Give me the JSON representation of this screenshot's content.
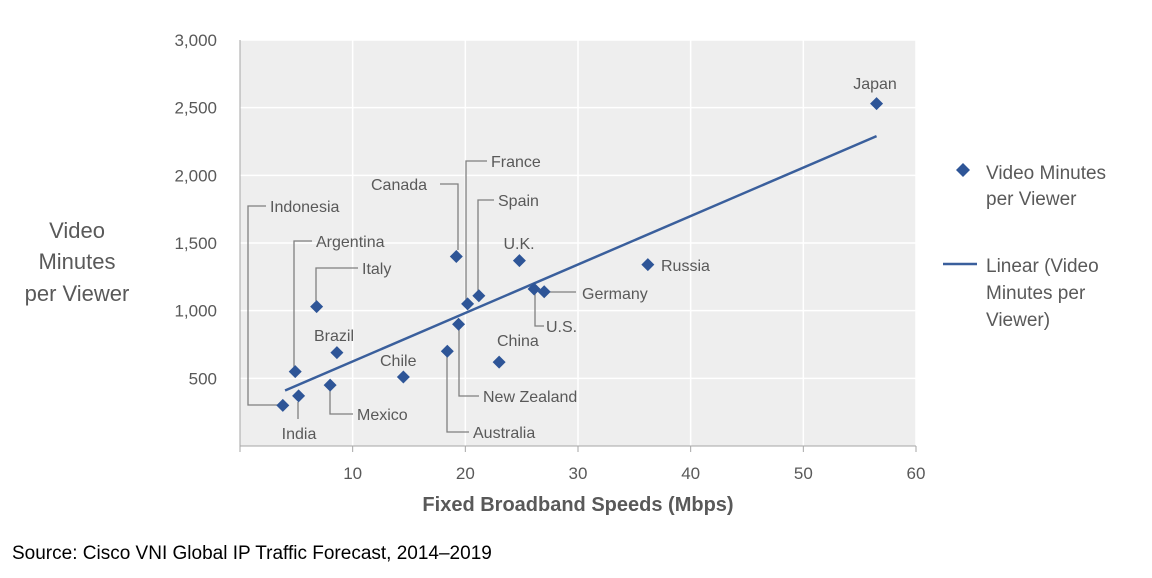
{
  "chart_data": {
    "type": "scatter",
    "title": "",
    "xlabel": "Fixed Broadband Speeds (Mbps)",
    "ylabel_lines": [
      "Video",
      "Minutes",
      "per Viewer"
    ],
    "xlim": [
      0,
      60
    ],
    "ylim": [
      0,
      3000
    ],
    "x_ticks": [
      10,
      20,
      30,
      40,
      50,
      60
    ],
    "y_ticks": [
      500,
      1000,
      1500,
      2000,
      2500,
      3000
    ],
    "y_tick_labels": [
      "500",
      "1,000",
      "1,500",
      "2,000",
      "2,500",
      "3,000"
    ],
    "grid": true,
    "legend_position": "right",
    "series": [
      {
        "name": "Video Minutes per Viewer",
        "name_lines": [
          "Video Minutes",
          "per Viewer"
        ],
        "marker": "diamond",
        "color": "#2e5597",
        "points": [
          {
            "label": "Japan",
            "x": 56.5,
            "y": 2530
          },
          {
            "label": "Russia",
            "x": 36.2,
            "y": 1340
          },
          {
            "label": "Germany",
            "x": 27.0,
            "y": 1140
          },
          {
            "label": "U.S.",
            "x": 26.1,
            "y": 1160
          },
          {
            "label": "U.K.",
            "x": 24.8,
            "y": 1370
          },
          {
            "label": "China",
            "x": 23.0,
            "y": 620
          },
          {
            "label": "Spain",
            "x": 21.2,
            "y": 1110
          },
          {
            "label": "France",
            "x": 20.2,
            "y": 1050
          },
          {
            "label": "Canada",
            "x": 19.2,
            "y": 1400
          },
          {
            "label": "New Zealand",
            "x": 19.4,
            "y": 900
          },
          {
            "label": "Australia",
            "x": 18.4,
            "y": 700
          },
          {
            "label": "Chile",
            "x": 14.5,
            "y": 510
          },
          {
            "label": "Brazil",
            "x": 8.6,
            "y": 690
          },
          {
            "label": "Mexico",
            "x": 8.0,
            "y": 450
          },
          {
            "label": "Italy",
            "x": 6.8,
            "y": 1030
          },
          {
            "label": "Argentina",
            "x": 4.9,
            "y": 550
          },
          {
            "label": "India",
            "x": 5.2,
            "y": 370
          },
          {
            "label": "Indonesia",
            "x": 3.8,
            "y": 300
          }
        ]
      },
      {
        "name": "Linear (Video Minutes per Viewer)",
        "name_lines": [
          "Linear (Video",
          "Minutes per",
          "Viewer)"
        ],
        "type": "line",
        "color": "#3a5f9c",
        "points": [
          {
            "x": 4.0,
            "y": 410
          },
          {
            "x": 56.5,
            "y": 2290
          }
        ]
      }
    ]
  },
  "source": "Source: Cisco VNI Global IP Traffic Forecast, 2014–2019"
}
